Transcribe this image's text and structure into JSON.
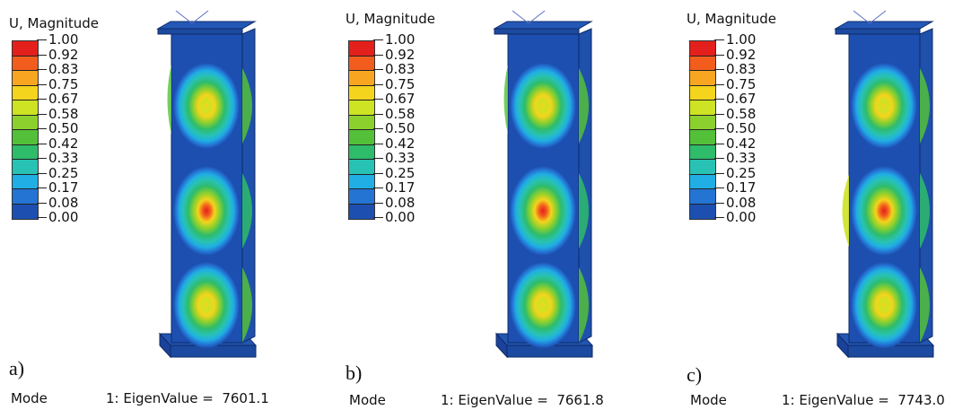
{
  "legend": {
    "title": "U, Magnitude",
    "ticks": [
      "1.00",
      "0.92",
      "0.83",
      "0.75",
      "0.67",
      "0.58",
      "0.50",
      "0.42",
      "0.33",
      "0.25",
      "0.17",
      "0.08",
      "0.00"
    ],
    "colors": [
      "#e4201c",
      "#f25d1e",
      "#f8a622",
      "#f4d41c",
      "#cde324",
      "#8cd02e",
      "#54c03a",
      "#2ebc6a",
      "#28c2b4",
      "#20aee4",
      "#2474d4",
      "#1c4fb0"
    ]
  },
  "panels": [
    {
      "label": "a)",
      "mode_label": "Mode",
      "mode_text": "1: EigenValue =",
      "eigenvalue": "7601.1"
    },
    {
      "label": "b)",
      "mode_label": "Mode",
      "mode_text": "1: EigenValue =",
      "eigenvalue": "7661.8"
    },
    {
      "label": "c)",
      "mode_label": "Mode",
      "mode_text": "1: EigenValue =",
      "eigenvalue": "7743.0"
    }
  ]
}
